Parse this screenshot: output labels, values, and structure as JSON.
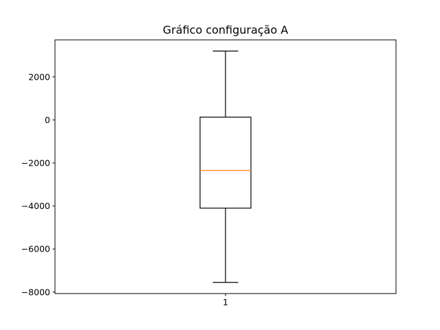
{
  "chart_data": {
    "type": "boxplot",
    "title": "Gráfico configuração A",
    "xlabel": "",
    "ylabel": "",
    "categories": [
      "1"
    ],
    "boxes": [
      {
        "label": "1",
        "whisker_low": -7550,
        "q1": -4100,
        "median": -2350,
        "q3": 130,
        "whisker_high": 3200
      }
    ],
    "ylim": [
      -8070,
      3720
    ],
    "yticks": [
      -8000,
      -6000,
      -4000,
      -2000,
      0,
      2000
    ],
    "ytick_labels": [
      "−8000",
      "−6000",
      "−4000",
      "−2000",
      "0",
      "2000"
    ],
    "grid": false,
    "colors": {
      "box": "#000000",
      "whisker": "#000000",
      "median": "#ff7f0e",
      "axes": "#000000",
      "background": "#ffffff"
    }
  }
}
